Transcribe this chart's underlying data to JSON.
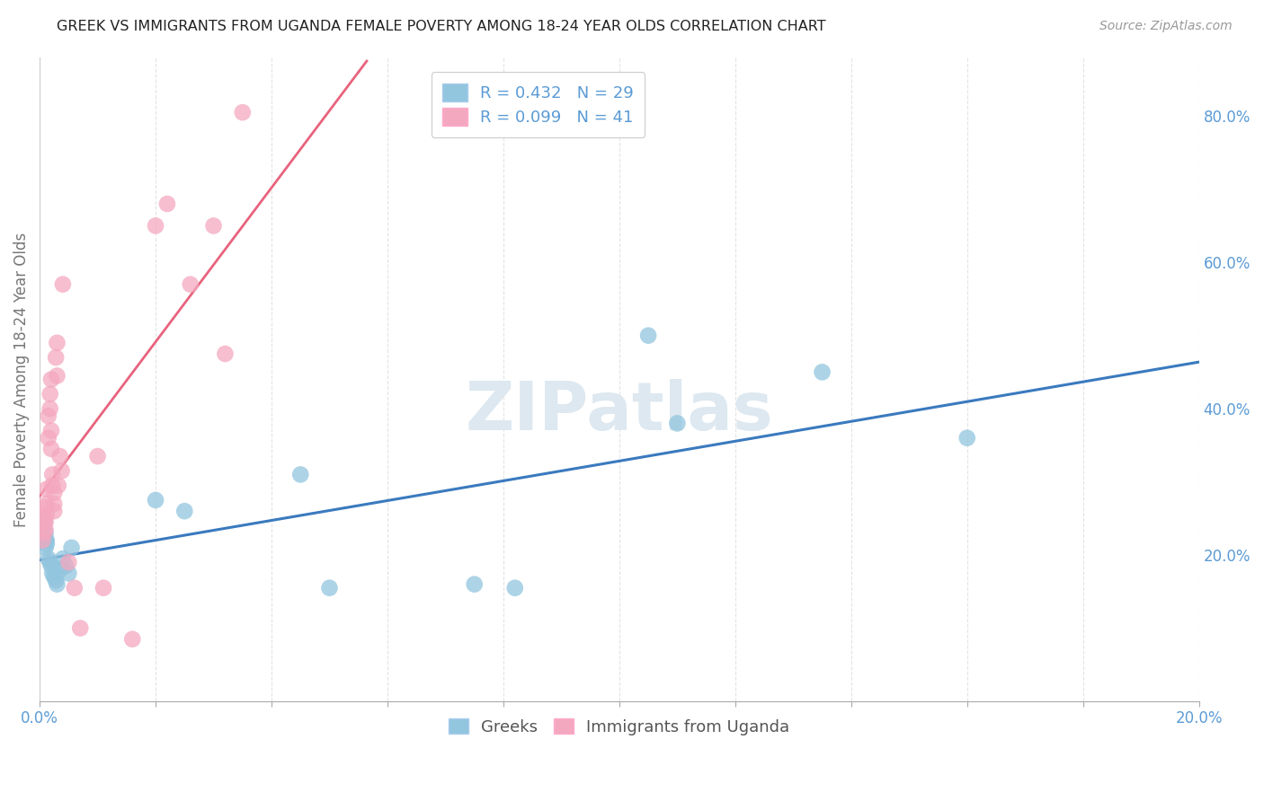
{
  "title": "GREEK VS IMMIGRANTS FROM UGANDA FEMALE POVERTY AMONG 18-24 YEAR OLDS CORRELATION CHART",
  "source": "Source: ZipAtlas.com",
  "ylabel": "Female Poverty Among 18-24 Year Olds",
  "ytick_vals": [
    0.2,
    0.4,
    0.6,
    0.8
  ],
  "legend1_label": "R = 0.432   N = 29",
  "legend2_label": "R = 0.099   N = 41",
  "legend_bottom1": "Greeks",
  "legend_bottom2": "Immigrants from Uganda",
  "blue_color": "#92c5de",
  "pink_color": "#f4a8bf",
  "blue_line_color": "#3a7abf",
  "pink_line_color": "#e8637d",
  "blue_scatter_x": [
    0.0008,
    0.0008,
    0.001,
    0.001,
    0.001,
    0.0012,
    0.0012,
    0.0015,
    0.0018,
    0.002,
    0.0022,
    0.0025,
    0.0028,
    0.003,
    0.0035,
    0.004,
    0.0045,
    0.005,
    0.0055,
    0.02,
    0.025,
    0.045,
    0.05,
    0.075,
    0.082,
    0.105,
    0.11,
    0.135,
    0.16
  ],
  "blue_scatter_y": [
    0.245,
    0.225,
    0.23,
    0.22,
    0.21,
    0.22,
    0.215,
    0.195,
    0.19,
    0.185,
    0.175,
    0.17,
    0.165,
    0.16,
    0.18,
    0.195,
    0.185,
    0.175,
    0.21,
    0.275,
    0.26,
    0.31,
    0.155,
    0.16,
    0.155,
    0.5,
    0.38,
    0.45,
    0.36
  ],
  "pink_scatter_x": [
    0.0005,
    0.0005,
    0.0008,
    0.0008,
    0.001,
    0.001,
    0.001,
    0.0012,
    0.0012,
    0.0012,
    0.0015,
    0.0015,
    0.0018,
    0.0018,
    0.002,
    0.002,
    0.002,
    0.0022,
    0.0022,
    0.0025,
    0.0025,
    0.0025,
    0.0028,
    0.003,
    0.003,
    0.0032,
    0.0035,
    0.0038,
    0.004,
    0.005,
    0.006,
    0.007,
    0.01,
    0.011,
    0.016,
    0.02,
    0.022,
    0.026,
    0.03,
    0.032,
    0.035
  ],
  "pink_scatter_y": [
    0.245,
    0.22,
    0.25,
    0.23,
    0.265,
    0.245,
    0.235,
    0.29,
    0.27,
    0.255,
    0.39,
    0.36,
    0.42,
    0.4,
    0.44,
    0.37,
    0.345,
    0.31,
    0.295,
    0.285,
    0.27,
    0.26,
    0.47,
    0.49,
    0.445,
    0.295,
    0.335,
    0.315,
    0.57,
    0.19,
    0.155,
    0.1,
    0.335,
    0.155,
    0.085,
    0.65,
    0.68,
    0.57,
    0.65,
    0.475,
    0.805
  ],
  "xlim": [
    0.0,
    0.2
  ],
  "ylim": [
    0.0,
    0.88
  ],
  "background_color": "#ffffff",
  "grid_color": "#dddddd",
  "title_fontsize": 11.5,
  "axis_label_color": "#5b9bd5",
  "ylabel_color": "#777777"
}
